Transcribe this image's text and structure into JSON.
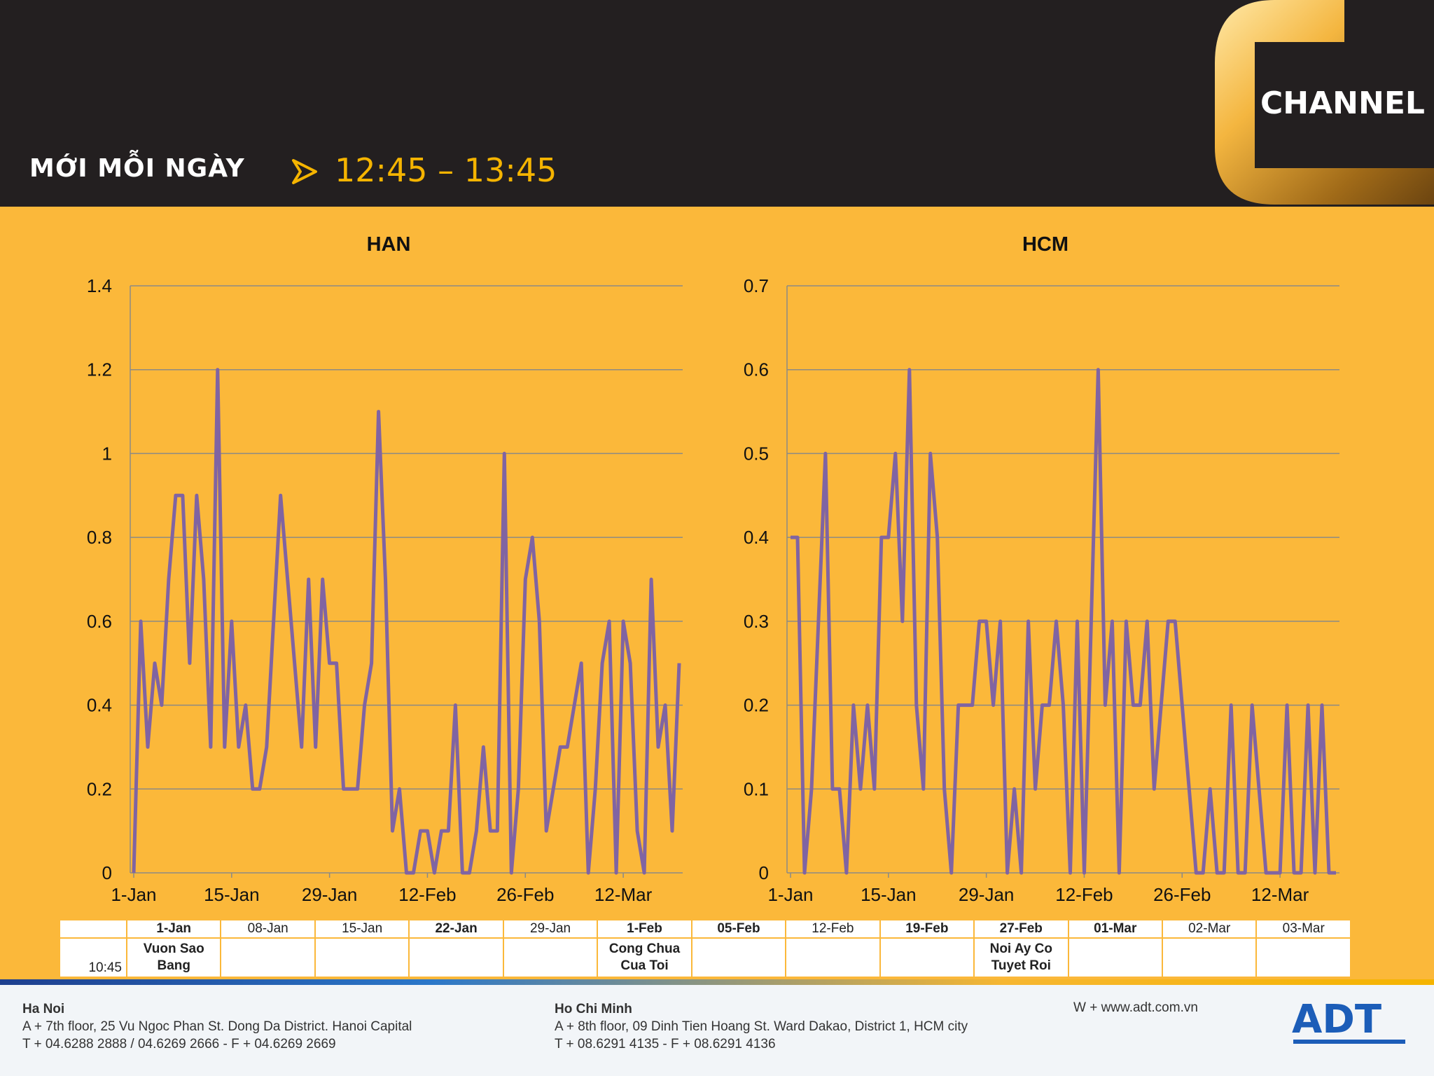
{
  "header": {
    "brand": "MỚI MỖI NGÀY",
    "timeslot": "12:45 – 13:45",
    "channel_logo": "CHANNEL"
  },
  "chart_data": [
    {
      "type": "line",
      "title": "HAN",
      "color": "#8064A2",
      "ylim": [
        0,
        1.4
      ],
      "yticks": [
        "0",
        "0.2",
        "0.4",
        "0.6",
        "0.8",
        "1",
        "1.2",
        "1.4"
      ],
      "xtick_labels": [
        "1-Jan",
        "15-Jan",
        "29-Jan",
        "12-Feb",
        "26-Feb",
        "12-Mar"
      ],
      "xtick_index": [
        0,
        14,
        28,
        42,
        56,
        70
      ],
      "values": [
        0,
        0.6,
        0.3,
        0.5,
        0.4,
        0.7,
        0.9,
        0.9,
        0.5,
        0.9,
        0.7,
        0.3,
        1.2,
        0.3,
        0.6,
        0.3,
        0.4,
        0.2,
        0.2,
        0.3,
        0.6,
        0.9,
        0.7,
        0.5,
        0.3,
        0.7,
        0.3,
        0.7,
        0.5,
        0.5,
        0.2,
        0.2,
        0.2,
        0.4,
        0.5,
        1.1,
        0.7,
        0.1,
        0.2,
        0,
        0,
        0.1,
        0.1,
        0,
        0.1,
        0.1,
        0.4,
        0,
        0,
        0.1,
        0.3,
        0.1,
        0.1,
        1.0,
        0,
        0.2,
        0.7,
        0.8,
        0.6,
        0.1,
        0.2,
        0.3,
        0.3,
        0.4,
        0.5,
        0,
        0.2,
        0.5,
        0.6,
        0,
        0.6,
        0.5,
        0.1,
        0,
        0.7,
        0.3,
        0.4,
        0.1,
        0.5
      ]
    },
    {
      "type": "line",
      "title": "HCM",
      "color": "#8064A2",
      "ylim": [
        0,
        0.7
      ],
      "yticks": [
        "0",
        "0.1",
        "0.2",
        "0.3",
        "0.4",
        "0.5",
        "0.6",
        "0.7"
      ],
      "xtick_labels": [
        "1-Jan",
        "15-Jan",
        "29-Jan",
        "12-Feb",
        "26-Feb",
        "12-Mar"
      ],
      "xtick_index": [
        0,
        14,
        28,
        42,
        56,
        70
      ],
      "values": [
        0.4,
        0.4,
        0,
        0.1,
        0.3,
        0.5,
        0.1,
        0.1,
        0,
        0.2,
        0.1,
        0.2,
        0.1,
        0.4,
        0.4,
        0.5,
        0.3,
        0.6,
        0.2,
        0.1,
        0.5,
        0.4,
        0.1,
        0,
        0.2,
        0.2,
        0.2,
        0.3,
        0.3,
        0.2,
        0.3,
        0,
        0.1,
        0,
        0.3,
        0.1,
        0.2,
        0.2,
        0.3,
        0.2,
        0,
        0.3,
        0,
        0.3,
        0.6,
        0.2,
        0.3,
        0,
        0.3,
        0.2,
        0.2,
        0.3,
        0.1,
        0.2,
        0.3,
        0.3,
        0.2,
        0.1,
        0,
        0,
        0.1,
        0,
        0,
        0.2,
        0,
        0,
        0.2,
        0.1,
        0,
        0,
        0,
        0.2,
        0,
        0,
        0.2,
        0,
        0.2,
        0,
        0
      ]
    }
  ],
  "schedule": {
    "time": "10:45",
    "columns": [
      {
        "date": "1-Jan",
        "bold": true,
        "program": "Vuon Sao Bang"
      },
      {
        "date": "08-Jan",
        "bold": false,
        "program": ""
      },
      {
        "date": "15-Jan",
        "bold": false,
        "program": ""
      },
      {
        "date": "22-Jan",
        "bold": true,
        "program": ""
      },
      {
        "date": "29-Jan",
        "bold": false,
        "program": ""
      },
      {
        "date": "1-Feb",
        "bold": true,
        "program": "Cong Chua Cua Toi"
      },
      {
        "date": "05-Feb",
        "bold": true,
        "program": ""
      },
      {
        "date": "12-Feb",
        "bold": false,
        "program": ""
      },
      {
        "date": "19-Feb",
        "bold": true,
        "program": ""
      },
      {
        "date": "27-Feb",
        "bold": true,
        "program": "Noi Ay Co Tuyet Roi"
      },
      {
        "date": "01-Mar",
        "bold": true,
        "program": ""
      },
      {
        "date": "02-Mar",
        "bold": false,
        "program": ""
      },
      {
        "date": "03-Mar",
        "bold": false,
        "program": ""
      }
    ]
  },
  "footer": {
    "hanoi": {
      "city": "Ha Noi",
      "address": "A + 7th floor, 25 Vu Ngoc Phan St. Dong Da District. Hanoi Capital",
      "phone": "T + 04.6288 2888 / 04.6269 2666 - F + 04.6269 2669"
    },
    "hcm": {
      "city": "Ho Chi Minh",
      "address": "A + 8th floor, 09 Dinh Tien Hoang St. Ward Dakao, District 1, HCM city",
      "phone": "T + 08.6291 4135 - F + 08.6291 4136"
    },
    "website": "W + www.adt.com.vn",
    "logo": "ADT"
  }
}
